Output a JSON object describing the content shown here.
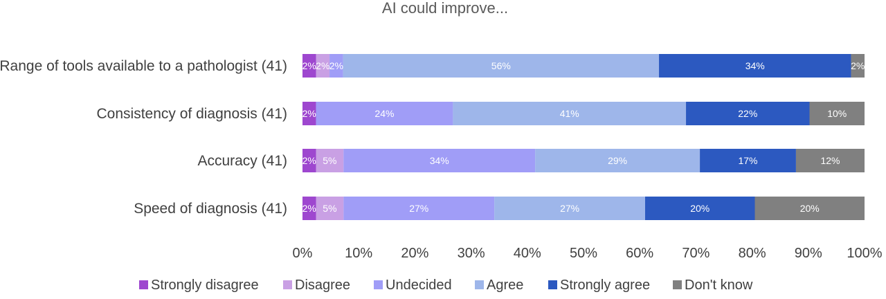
{
  "chart_data": {
    "type": "bar",
    "orientation": "horizontal",
    "stacked": "percent",
    "title": "AI could improve...",
    "xlabel": "",
    "ylabel": "",
    "xlim": [
      0,
      100
    ],
    "x_ticks": [
      "0%",
      "10%",
      "20%",
      "30%",
      "40%",
      "50%",
      "60%",
      "70%",
      "80%",
      "90%",
      "100%"
    ],
    "grid": false,
    "legend_position": "bottom",
    "categories": [
      "Range of tools available to a pathologist (41)",
      "Consistency of diagnosis (41)",
      "Accuracy (41)",
      "Speed of diagnosis (41)"
    ],
    "series": [
      {
        "name": "Strongly disagree",
        "color": "#9e47cf",
        "values": [
          2.4,
          2.4,
          2.4,
          2.4
        ],
        "labels": [
          "2%",
          "2%",
          "2%",
          "2%"
        ]
      },
      {
        "name": "Disagree",
        "color": "#c9a0e4",
        "values": [
          2.4,
          0,
          4.9,
          4.9
        ],
        "labels": [
          "2%",
          "",
          "5%",
          "5%"
        ]
      },
      {
        "name": "Undecided",
        "color": "#a09df7",
        "values": [
          2.4,
          24.4,
          34.1,
          26.8
        ],
        "labels": [
          "2%",
          "24%",
          "34%",
          "27%"
        ]
      },
      {
        "name": "Agree",
        "color": "#9eb6ea",
        "values": [
          56.1,
          41.5,
          29.3,
          26.8
        ],
        "labels": [
          "56%",
          "41%",
          "29%",
          "27%"
        ]
      },
      {
        "name": "Strongly agree",
        "color": "#2c59c0",
        "values": [
          34.1,
          22.0,
          17.1,
          19.5
        ],
        "labels": [
          "34%",
          "22%",
          "17%",
          "20%"
        ]
      },
      {
        "name": "Don't know",
        "color": "#808080",
        "values": [
          2.4,
          9.8,
          12.2,
          19.5
        ],
        "labels": [
          "2%",
          "10%",
          "12%",
          "20%"
        ]
      }
    ]
  }
}
